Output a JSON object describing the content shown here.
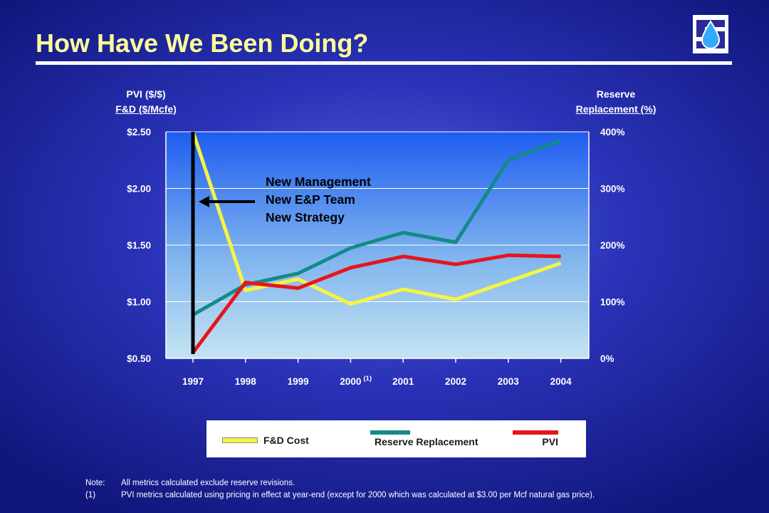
{
  "header": {
    "title": "How Have We Been Doing?"
  },
  "chart_data": {
    "type": "line",
    "x": [
      "1997",
      "1998",
      "1999",
      "2000",
      "2001",
      "2002",
      "2003",
      "2004"
    ],
    "x_superscript": {
      "2000": "(1)"
    },
    "left_axis": {
      "title_lines": [
        "PVI ($/$)",
        "F&D ($/Mcfe)"
      ],
      "ticks": [
        "$2.50",
        "$2.00",
        "$1.50",
        "$1.00",
        "$0.50"
      ],
      "ylim": [
        0.5,
        2.5
      ]
    },
    "right_axis": {
      "title_lines": [
        "Reserve",
        "Replacement  (%)"
      ],
      "ticks": [
        "400%",
        "300%",
        "200%",
        "100%",
        "0%"
      ],
      "ylim": [
        0,
        400
      ]
    },
    "series": [
      {
        "name": "F&D Cost",
        "axis": "left",
        "color": "#f5f542",
        "values": [
          2.5,
          1.1,
          1.2,
          0.98,
          1.11,
          1.02,
          1.18,
          1.34
        ]
      },
      {
        "name": "Reserve Replacement",
        "axis": "right",
        "color": "#138a8a",
        "values": [
          77,
          130,
          150,
          195,
          222,
          205,
          350,
          385
        ]
      },
      {
        "name": "PVI",
        "axis": "left",
        "color": "#e8141b",
        "values": [
          0.55,
          1.17,
          1.12,
          1.3,
          1.4,
          1.33,
          1.41,
          1.4
        ]
      }
    ],
    "annotation": {
      "lines": [
        "New Management",
        "New E&P Team",
        "New Strategy"
      ],
      "marker_year": "1997"
    },
    "grid": "horizontal",
    "legend_position": "bottom"
  },
  "notes": [
    {
      "label": "Note:",
      "text": "All metrics calculated exclude reserve revisions."
    },
    {
      "label": "(1)",
      "text": "PVI metrics calculated using pricing in effect at year-end (except for 2000 which was calculated at $3.00 per Mcf natural gas price)."
    }
  ],
  "colors": {
    "title": "#ffff99",
    "plot_top": "#1e5cf0",
    "plot_bottom": "#c4e4f2"
  }
}
